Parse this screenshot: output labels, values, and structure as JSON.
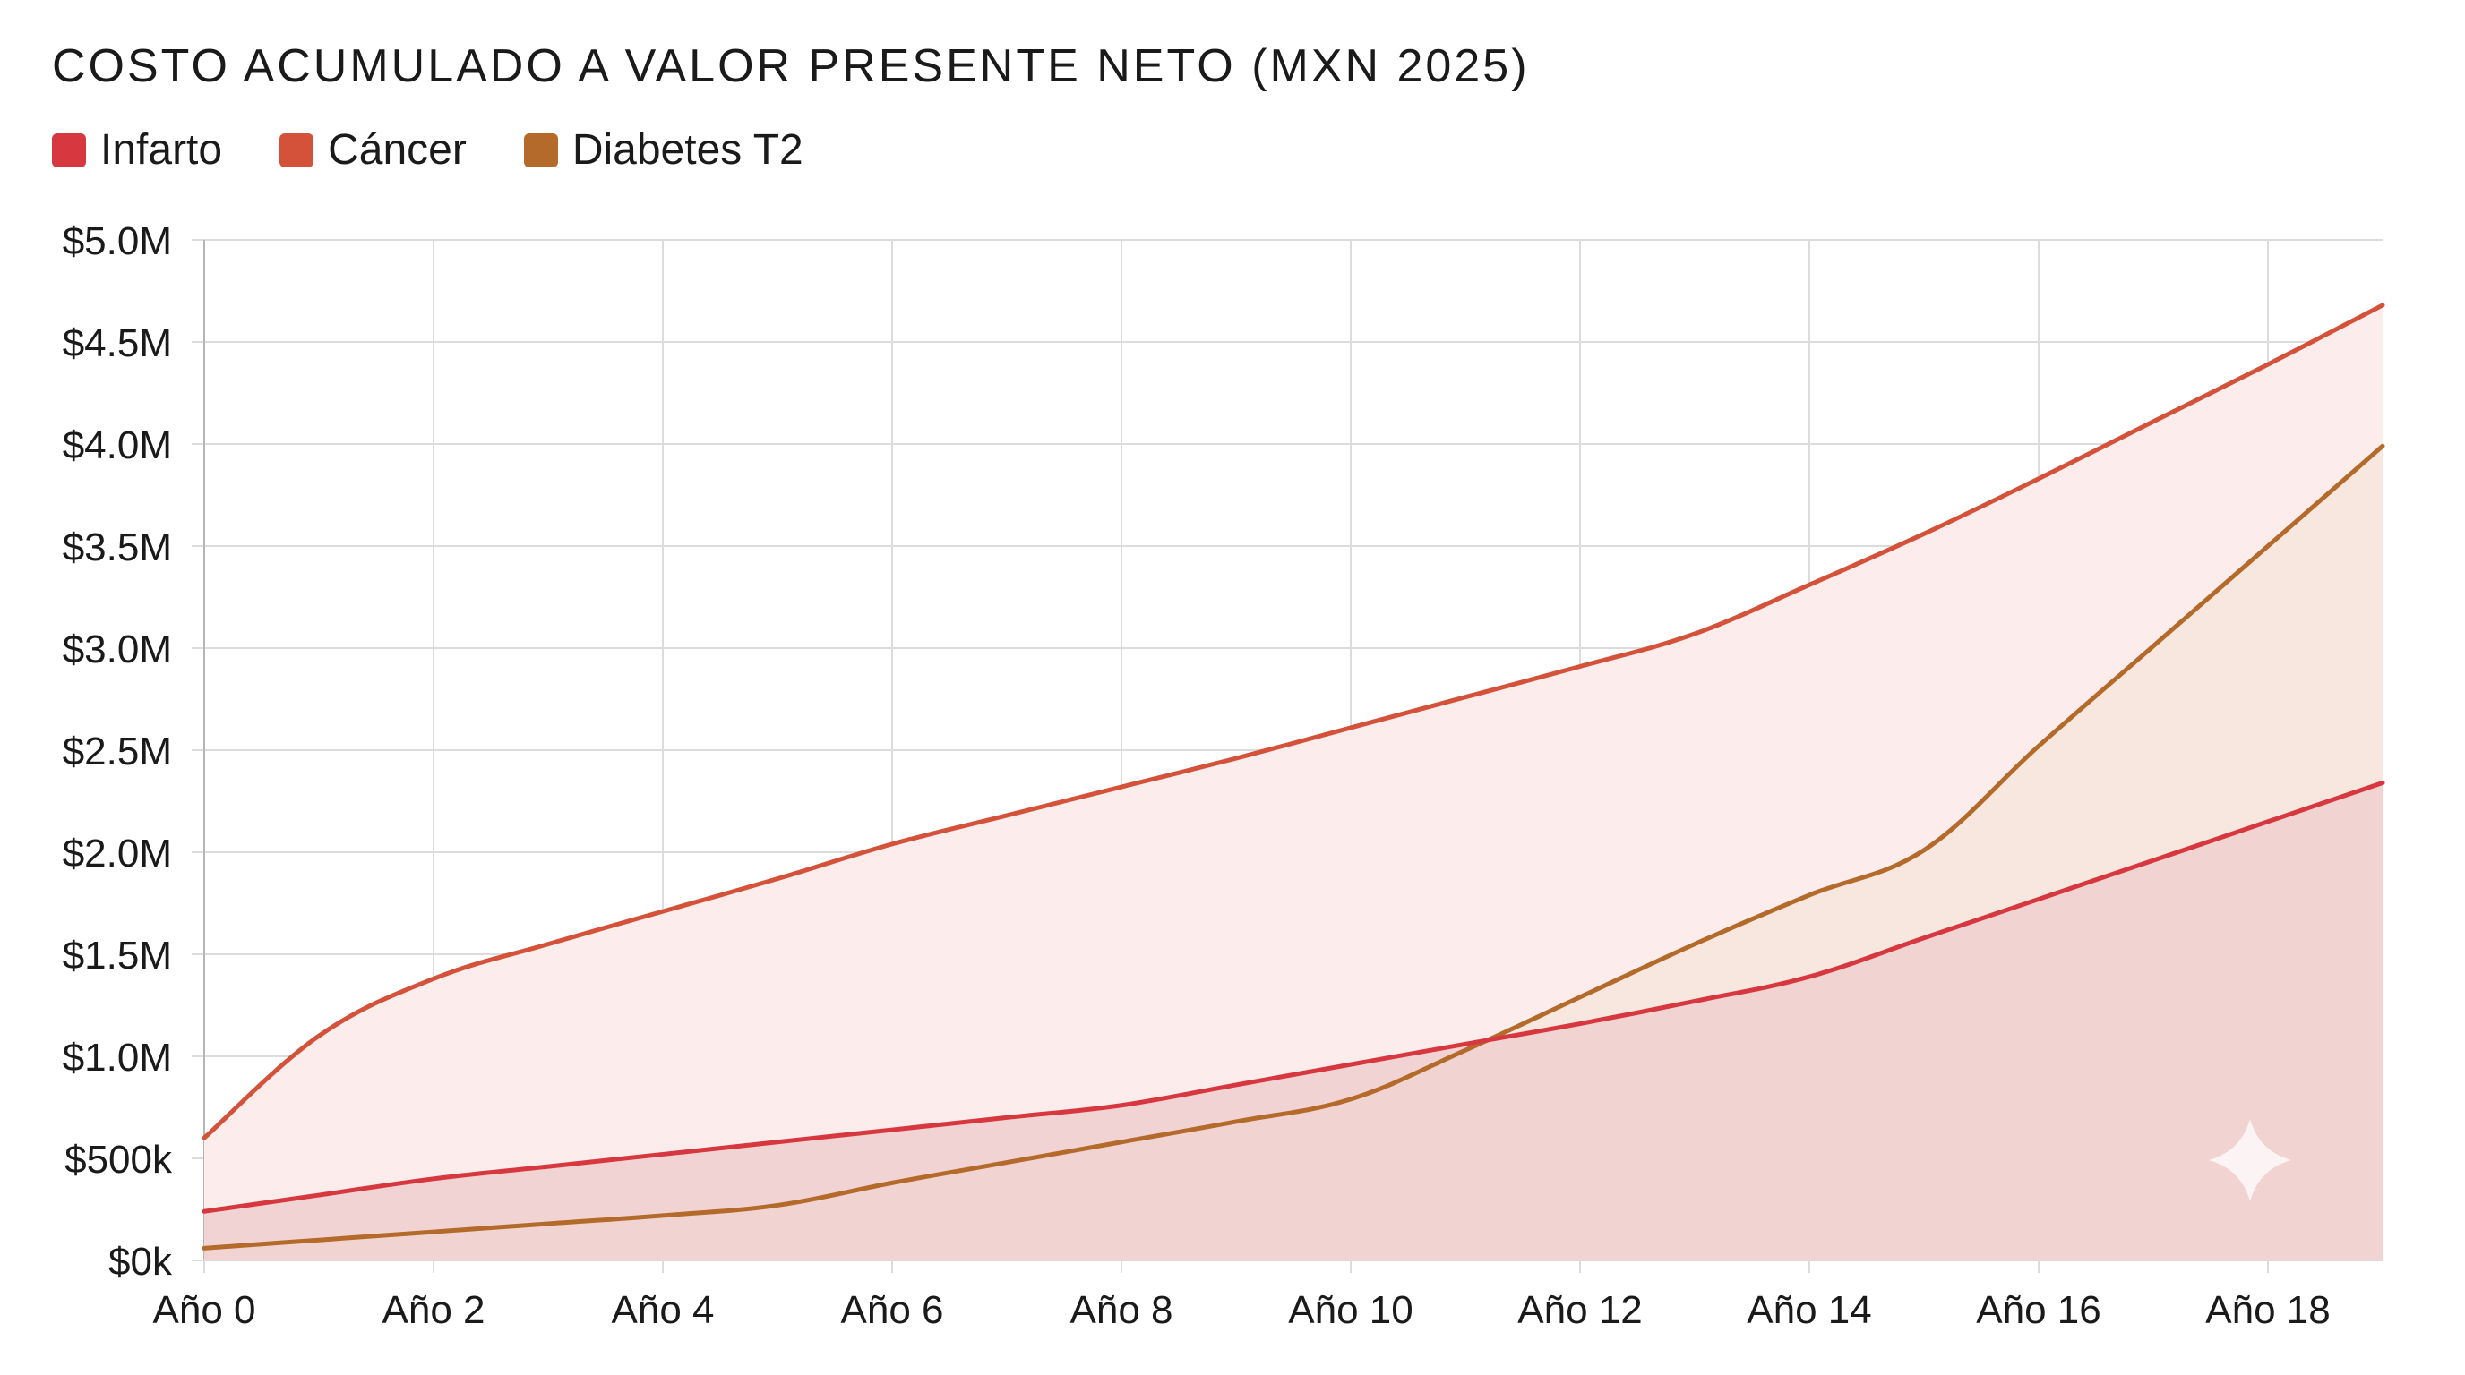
{
  "chart_data": {
    "type": "area",
    "title": "COSTO ACUMULADO A VALOR PRESENTE NETO (MXN 2025)",
    "xlabel": "",
    "ylabel": "",
    "x_tick_labels": [
      "Año 0",
      "Año 2",
      "Año 4",
      "Año 6",
      "Año 8",
      "Año 10",
      "Año 12",
      "Año 14",
      "Año 16",
      "Año 18"
    ],
    "y_tick_labels": [
      "$0k",
      "$500k",
      "$1.0M",
      "$1.5M",
      "$2.0M",
      "$2.5M",
      "$3.0M",
      "$3.5M",
      "$4.0M",
      "$4.5M",
      "$5.0M"
    ],
    "y_tick_values": [
      0,
      500000,
      1000000,
      1500000,
      2000000,
      2500000,
      3000000,
      3500000,
      4000000,
      4500000,
      5000000
    ],
    "xlim": [
      0,
      19
    ],
    "ylim": [
      0,
      5000000
    ],
    "grid": true,
    "legend_position": "top-left",
    "x": [
      0,
      1,
      2,
      3,
      4,
      5,
      6,
      7,
      8,
      9,
      10,
      11,
      12,
      13,
      14,
      15,
      16,
      17,
      18,
      19
    ],
    "series": [
      {
        "name": "Infarto",
        "color": "#d7373f",
        "fill": "#f0cfcf",
        "values": [
          240000,
          320000,
          400000,
          460000,
          520000,
          580000,
          640000,
          700000,
          760000,
          860000,
          960000,
          1060000,
          1160000,
          1270000,
          1390000,
          1580000,
          1770000,
          1960000,
          2150000,
          2340000
        ]
      },
      {
        "name": "Cáncer",
        "color": "#d4523a",
        "fill": "#fdecec",
        "values": [
          600000,
          1100000,
          1380000,
          1550000,
          1710000,
          1870000,
          2040000,
          2180000,
          2320000,
          2460000,
          2610000,
          2760000,
          2910000,
          3070000,
          3310000,
          3560000,
          3830000,
          4110000,
          4390000,
          4680000
        ]
      },
      {
        "name": "Diabetes T2",
        "color": "#b46a2a",
        "fill": "#f5e6da",
        "values": [
          60000,
          100000,
          140000,
          180000,
          220000,
          270000,
          380000,
          480000,
          580000,
          680000,
          790000,
          1030000,
          1290000,
          1550000,
          1790000,
          2010000,
          2520000,
          3010000,
          3500000,
          3990000
        ]
      }
    ]
  }
}
